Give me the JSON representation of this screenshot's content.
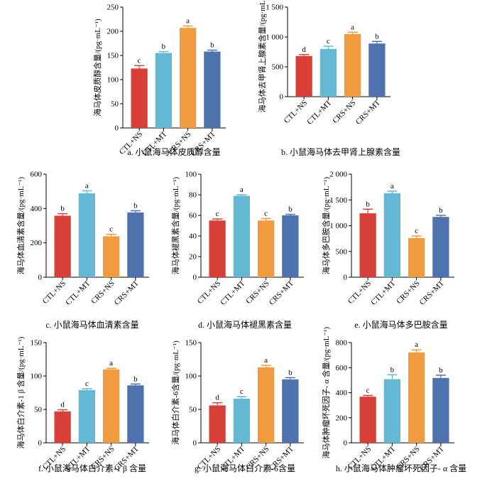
{
  "chart_data": [
    {
      "type": "bar",
      "title": "a. 小鼠海马体皮质醇含量",
      "ylabel": "海马体皮质醇含量/(pg·mL⁻¹)",
      "ylim": [
        0,
        250
      ],
      "yticks": [
        "0",
        "50",
        "100",
        "150",
        "200",
        "250"
      ],
      "categories": [
        "CTL+NS",
        "CTL+MT",
        "CRS+NS",
        "CRS+MT"
      ],
      "values": [
        123,
        155,
        207,
        158
      ],
      "errors": [
        6,
        3,
        4,
        3
      ],
      "letters": [
        "c",
        "b",
        "a",
        "b"
      ]
    },
    {
      "type": "bar",
      "title": "b. 小鼠海马体去甲肾上腺素含量",
      "ylabel": "海马体去甲肾上腺素含量/(pg·mL⁻¹)",
      "ylim": [
        0,
        1500
      ],
      "yticks": [
        "0",
        "500",
        "1 000",
        "1 500"
      ],
      "categories": [
        "CTL+NS",
        "CTL+MT",
        "CRS+NS",
        "CRS+MT"
      ],
      "values": [
        680,
        800,
        1050,
        890
      ],
      "errors": [
        25,
        45,
        30,
        35
      ],
      "letters": [
        "d",
        "c",
        "a",
        "b"
      ]
    },
    {
      "type": "bar",
      "title": "c. 小鼠海马体血清素含量",
      "ylabel": "海马体血清素含量/(pg·mL⁻¹)",
      "ylim": [
        0,
        600
      ],
      "yticks": [
        "0",
        "200",
        "400",
        "600"
      ],
      "categories": [
        "CTL+NS",
        "CTL+MT",
        "CRS+NS",
        "CRS+MT"
      ],
      "values": [
        358,
        488,
        238,
        377
      ],
      "errors": [
        12,
        15,
        12,
        10
      ],
      "letters": [
        "b",
        "a",
        "c",
        "b"
      ]
    },
    {
      "type": "bar",
      "title": "d. 小鼠海马体褪黑素含量",
      "ylabel": "海马体褪黑素含量/(pg·mL⁻¹)",
      "ylim": [
        0,
        100
      ],
      "yticks": [
        "0",
        "20",
        "40",
        "60",
        "80",
        "100"
      ],
      "categories": [
        "CTL+NS",
        "CTL+MT",
        "CRS+NS",
        "CRS+MT"
      ],
      "values": [
        55,
        79,
        55,
        60
      ],
      "errors": [
        1.5,
        1,
        2,
        1
      ],
      "letters": [
        "c",
        "a",
        "c",
        "b"
      ]
    },
    {
      "type": "bar",
      "title": "e. 小鼠海马体多巴胺含量",
      "ylabel": "海马体多巴胺含量/(pg·mL⁻¹)",
      "ylim": [
        0,
        2000
      ],
      "yticks": [
        "0",
        "500",
        "1 000",
        "1 500",
        "2 000"
      ],
      "categories": [
        "CTL+NS",
        "CTL+MT",
        "CRS+NS",
        "CRS+MT"
      ],
      "values": [
        1240,
        1630,
        760,
        1170
      ],
      "errors": [
        80,
        40,
        40,
        30
      ],
      "letters": [
        "b",
        "a",
        "c",
        "b"
      ]
    },
    {
      "type": "bar",
      "title": "f. 小鼠海马体白介素-1 β 含量",
      "ylabel": "海马体白介素-1 β 含量/(pg·mL⁻¹)",
      "ylim": [
        0,
        150
      ],
      "yticks": [
        "0",
        "50",
        "100",
        "150"
      ],
      "categories": [
        "CTL+NS",
        "CTL+MT",
        "CRS+NS",
        "CRS+MT"
      ],
      "values": [
        47,
        79,
        110,
        86
      ],
      "errors": [
        2.5,
        2,
        1.5,
        2
      ],
      "letters": [
        "d",
        "c",
        "a",
        "b"
      ]
    },
    {
      "type": "bar",
      "title": "g. 小鼠海马体白介素-6含量",
      "ylabel": "海马体白介素-6含量/(pg·mL⁻¹)",
      "ylim": [
        0,
        150
      ],
      "yticks": [
        "0",
        "50",
        "100",
        "150"
      ],
      "categories": [
        "CTL+NS",
        "CTL+MT",
        "CRS+NS",
        "CRS+MT"
      ],
      "values": [
        56,
        66,
        113,
        95
      ],
      "errors": [
        4,
        3,
        3,
        2.5
      ],
      "letters": [
        "d",
        "c",
        "a",
        "b"
      ]
    },
    {
      "type": "bar",
      "title": "h. 小鼠海马体肿瘤坏死因子- α 含量",
      "ylabel": "海马体肿瘤坏死因子- α 含量/(pg·mL⁻¹)",
      "ylim": [
        0,
        800
      ],
      "yticks": [
        "0",
        "200",
        "400",
        "600",
        "800"
      ],
      "categories": [
        "CTL+NS",
        "CTL+MT",
        "CRS+NS",
        "CRS+MT"
      ],
      "values": [
        368,
        508,
        722,
        518
      ],
      "errors": [
        10,
        35,
        20,
        22
      ],
      "letters": [
        "c",
        "b",
        "a",
        "b"
      ]
    }
  ],
  "colors": {
    "bars": [
      "#d84037",
      "#63b8d3",
      "#f19a3e",
      "#4d72ad"
    ],
    "axis": "#000000"
  }
}
